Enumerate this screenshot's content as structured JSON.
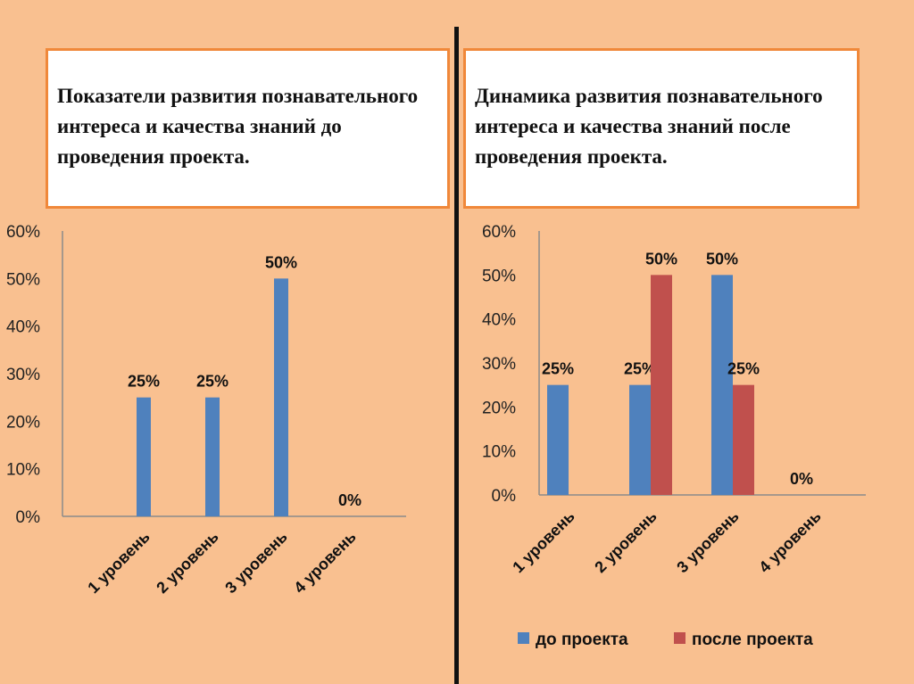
{
  "left_title": "Показатели развития познавательного интереса и качества знаний до проведения проекта.",
  "right_title": "Динамика развития познавательного интереса и качества знаний после проведения проекта.",
  "colors": {
    "blue": "#4f81bd",
    "red": "#c0504d",
    "background": "#f9c090",
    "border": "#f0883a"
  },
  "chart_data": [
    {
      "type": "bar",
      "title": "Показатели развития познавательного интереса и качества знаний до проведения проекта.",
      "categories": [
        "1 уровень",
        "2 уровень",
        "3 уровень",
        "4 уровень"
      ],
      "values": [
        25,
        25,
        50,
        0
      ],
      "data_labels": [
        "25%",
        "25%",
        "50%",
        "0%"
      ],
      "yticks": [
        "0%",
        "10%",
        "20%",
        "30%",
        "40%",
        "50%",
        "60%"
      ],
      "ylim": [
        0,
        60
      ],
      "grid": false
    },
    {
      "type": "bar",
      "title": "Динамика развития познавательного интереса и качества знаний после проведения проекта.",
      "categories": [
        "1 уровень",
        "2 уровень",
        "3 уровень",
        "4 уровень"
      ],
      "series": [
        {
          "name": "до проекта",
          "values": [
            25,
            25,
            50,
            0
          ],
          "data_labels": [
            "25%",
            "25%",
            "50%",
            "0%"
          ]
        },
        {
          "name": "после проекта",
          "values": [
            0,
            50,
            25,
            0
          ],
          "data_labels": [
            "",
            "50%",
            "25%",
            ""
          ]
        }
      ],
      "yticks": [
        "0%",
        "10%",
        "20%",
        "30%",
        "40%",
        "50%",
        "60%"
      ],
      "ylim": [
        0,
        60
      ],
      "grid": false,
      "legend": "bottom"
    }
  ]
}
